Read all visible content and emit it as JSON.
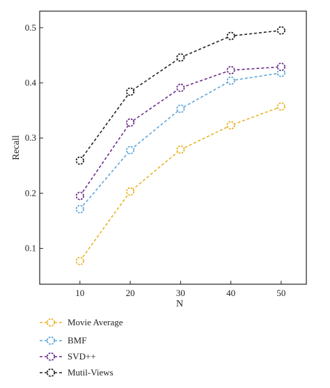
{
  "chart_data": {
    "type": "line",
    "x": [
      10,
      20,
      30,
      40,
      50
    ],
    "xlabel": "N",
    "ylabel": "Recall",
    "xticks": [
      "10",
      "20",
      "30",
      "40",
      "50"
    ],
    "yticks": [
      "0.1",
      "0.2",
      "0.3",
      "0.4",
      "0.5"
    ],
    "xlim": [
      2,
      55
    ],
    "ylim": [
      0.035,
      0.53
    ],
    "grid": false,
    "legend_position": "bottom",
    "series": [
      {
        "name": "Movie Average",
        "color": "#E8B224",
        "values": [
          0.077,
          0.203,
          0.279,
          0.323,
          0.357
        ]
      },
      {
        "name": "BMF",
        "color": "#5BA6D9",
        "values": [
          0.171,
          0.278,
          0.353,
          0.404,
          0.418
        ]
      },
      {
        "name": "SVD++",
        "color": "#6A2C86",
        "values": [
          0.195,
          0.328,
          0.391,
          0.423,
          0.429
        ]
      },
      {
        "name": "Mutil-Views",
        "color": "#222222",
        "values": [
          0.259,
          0.384,
          0.446,
          0.485,
          0.495
        ]
      }
    ]
  }
}
